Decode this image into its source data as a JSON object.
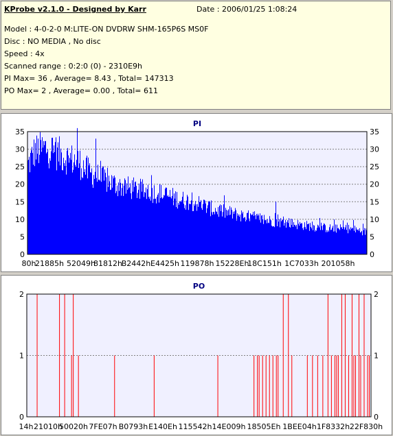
{
  "header": {
    "title": "KProbe v2.1.0 - Designed by Karr",
    "date": "Date : 2006/01/25 1:08:24"
  },
  "info": {
    "model": "Model : 4-0-2-0 M:LITE-ON DVDRW SHM-165P6S MS0F",
    "disc": "Disc : NO MEDIA , No disc",
    "speed": "Speed : 4x",
    "scanned_range": "Scanned range : 0:2:0 (0) - 2310E9h",
    "pi_stats": "PI Max= 36 , Average= 8.43 , Total= 147313",
    "po_stats": "PO Max= 2 , Average= 0.00 , Total= 611"
  },
  "colors": {
    "pi": "#0000ff",
    "po": "#ff0000",
    "plot_bg": "#f0f0ff",
    "title": "#000080"
  },
  "chart_data": [
    {
      "type": "bar",
      "title": "PI",
      "ylim": [
        0,
        35
      ],
      "yticks": [
        0,
        5,
        10,
        15,
        20,
        25,
        30,
        35
      ],
      "x_tick_labels": [
        "80h",
        "21885h",
        "52049h",
        "81812h",
        "B2442h",
        "E4425h",
        "119878h",
        "15228Eh",
        "18C151h",
        "1C7033h",
        "201058h"
      ],
      "grid": true,
      "envelope": [
        [
          0,
          26
        ],
        [
          0.02,
          30
        ],
        [
          0.05,
          31
        ],
        [
          0.08,
          30
        ],
        [
          0.12,
          28
        ],
        [
          0.15,
          27
        ],
        [
          0.18,
          24
        ],
        [
          0.22,
          22
        ],
        [
          0.27,
          20
        ],
        [
          0.32,
          19
        ],
        [
          0.38,
          18
        ],
        [
          0.45,
          16
        ],
        [
          0.5,
          15
        ],
        [
          0.55,
          13
        ],
        [
          0.6,
          12
        ],
        [
          0.65,
          11
        ],
        [
          0.7,
          10
        ],
        [
          0.78,
          9
        ],
        [
          0.85,
          8
        ],
        [
          0.9,
          7.5
        ],
        [
          0.95,
          7.5
        ],
        [
          1,
          6.5
        ]
      ],
      "spikes": [
        [
          0.145,
          36
        ],
        [
          0.2,
          33
        ],
        [
          0.08,
          32
        ],
        [
          0.03,
          33
        ],
        [
          0.73,
          15
        ]
      ]
    },
    {
      "type": "bar",
      "title": "PO",
      "ylim": [
        0,
        2
      ],
      "yticks": [
        0,
        1,
        2
      ],
      "x_tick_labels": [
        "14h",
        "21010h",
        "50020h",
        "7FE07h",
        "B0793h",
        "E140Eh",
        "115542h",
        "14E009h",
        "18505Eh",
        "1BEE04h",
        "1F8332h",
        "22F830h"
      ],
      "grid": true,
      "events_value_2": [
        0.03,
        0.095,
        0.11,
        0.135,
        0.745,
        0.76,
        0.875,
        0.915,
        0.925,
        0.945,
        0.965,
        0.98
      ],
      "events_value_1": [
        0.13,
        0.15,
        0.255,
        0.37,
        0.555,
        0.66,
        0.67,
        0.675,
        0.685,
        0.695,
        0.705,
        0.715,
        0.725,
        0.73,
        0.77,
        0.815,
        0.83,
        0.845,
        0.86,
        0.885,
        0.895,
        0.9,
        0.905,
        0.935,
        0.95,
        0.955,
        0.97,
        0.99,
        0.995
      ]
    }
  ]
}
